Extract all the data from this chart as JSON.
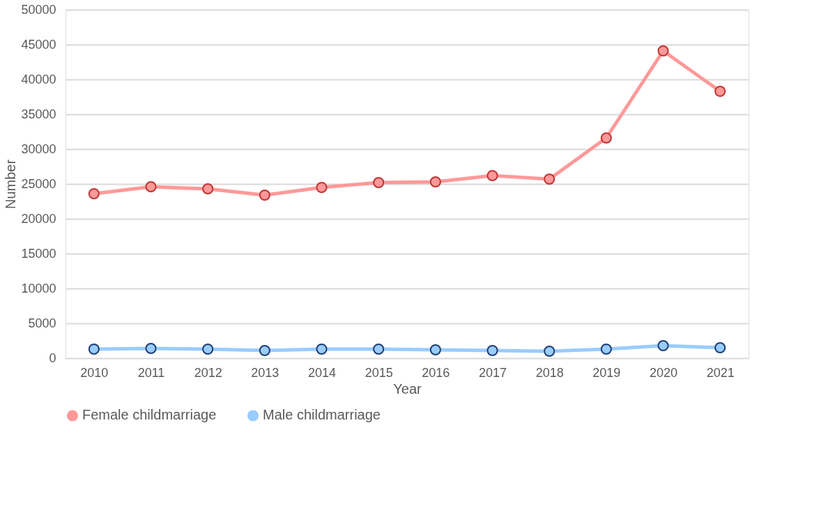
{
  "chart_data": {
    "type": "line",
    "xlabel": "Year",
    "ylabel": "Number",
    "categories": [
      "2010",
      "2011",
      "2012",
      "2013",
      "2014",
      "2015",
      "2016",
      "2017",
      "2018",
      "2019",
      "2020",
      "2021"
    ],
    "series": [
      {
        "name": "Female childmarriage",
        "color": "#ff9999",
        "values": [
          23600,
          24600,
          24300,
          23400,
          24500,
          25200,
          25300,
          26200,
          25700,
          31600,
          44100,
          38300
        ]
      },
      {
        "name": "Male childmarriage",
        "color": "#99ccff",
        "values": [
          1300,
          1400,
          1300,
          1100,
          1300,
          1300,
          1200,
          1100,
          1000,
          1300,
          1800,
          1500
        ]
      }
    ],
    "ylim": [
      0,
      50000
    ],
    "yticks": [
      0,
      5000,
      10000,
      15000,
      20000,
      25000,
      30000,
      35000,
      40000,
      45000,
      50000
    ],
    "grid": "y",
    "legend": "bottom",
    "marker": "circle",
    "line_style": "solid"
  }
}
